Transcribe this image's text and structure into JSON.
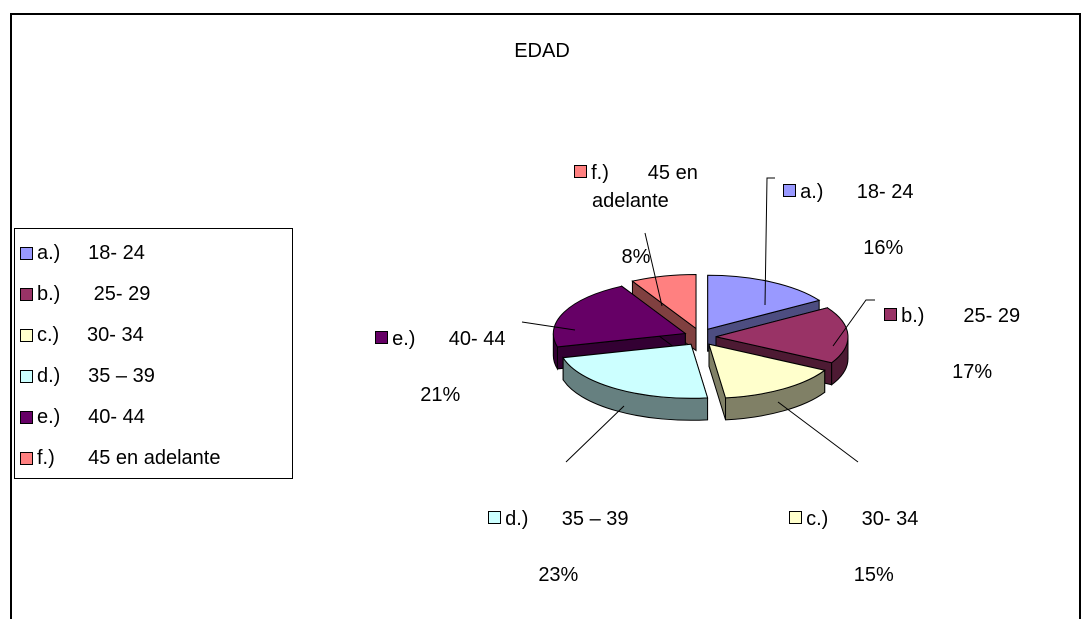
{
  "chart_data": {
    "type": "pie",
    "title": "EDAD",
    "categories": [
      "a.)     18- 24",
      "b.)      25- 29",
      "c.)     30- 34",
      "d.)     35 – 39",
      "e.)     40- 44",
      "f.)      45 en adelante"
    ],
    "values": [
      16,
      17,
      15,
      23,
      21,
      8
    ],
    "value_labels": [
      "16%",
      "17%",
      "15%",
      "23%",
      "21%",
      "8%"
    ],
    "colors": [
      "#9999ff",
      "#993366",
      "#ffffcc",
      "#ccffff",
      "#660066",
      "#ff8080"
    ],
    "side_colors": [
      "#4d4d80",
      "#4d1a33",
      "#808066",
      "#668080",
      "#330033",
      "#804040"
    ],
    "data_labels": [
      {
        "name": "a.)      18- 24",
        "pct": "16%"
      },
      {
        "name": "b.)       25- 29",
        "pct": "17%"
      },
      {
        "name": "c.)      30- 34",
        "pct": "15%"
      },
      {
        "name": "d.)      35 – 39",
        "pct": "23%"
      },
      {
        "name": "e.)      40- 44",
        "pct": "21%"
      },
      {
        "name": "f.)       45 en\nadelante",
        "pct": "8%"
      }
    ],
    "legend_position": "left",
    "style": "3d-exploded-pie"
  }
}
